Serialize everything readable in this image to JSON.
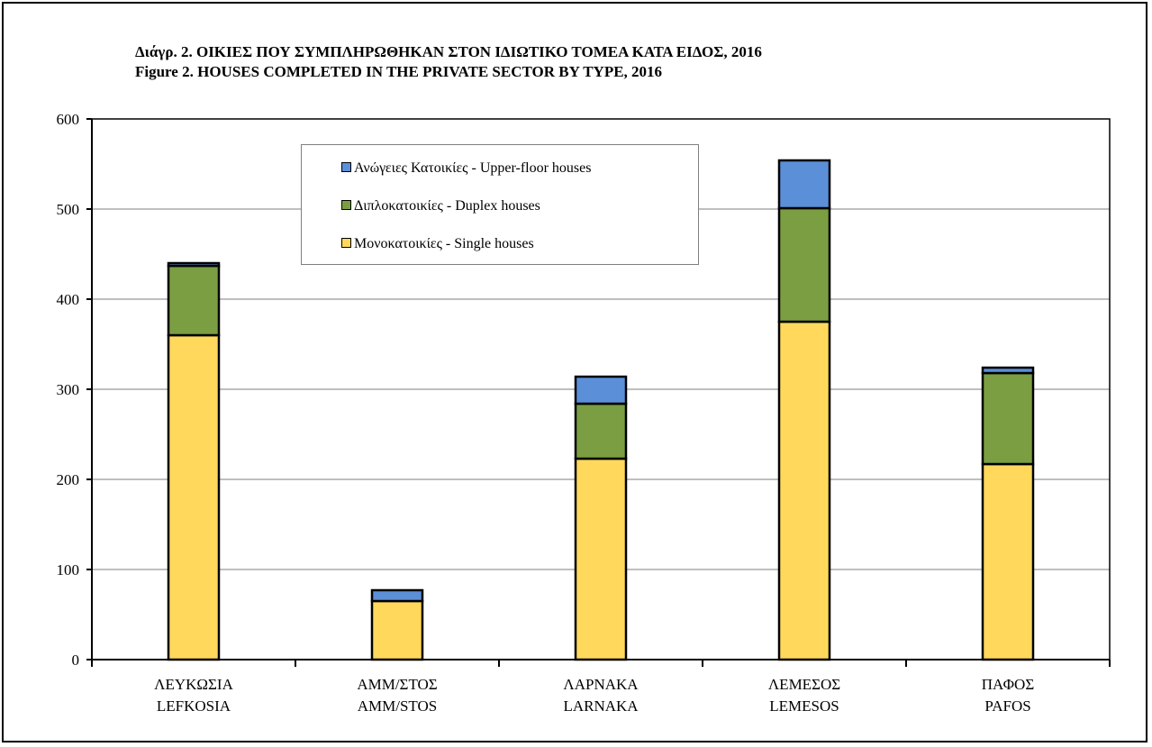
{
  "titles": {
    "line1": "Διάγρ.  2.  ΟΙΚΙΕΣ ΠΟΥ ΣΥΜΠΛΗΡΩΘΗΚΑΝ ΣΤΟΝ ΙΔΙΩΤΙΚΟ ΤΟΜΕΑ ΚΑΤΑ ΕΙΔΟΣ, 2016",
    "line2": "Figure  2.  HOUSES COMPLETED IN THE PRIVATE SECTOR  BY TYPE, 2016"
  },
  "colors": {
    "single": "#ffd85c",
    "duplex": "#7a9e41",
    "upper": "#5b8fd8"
  },
  "legend": {
    "upper": "Ανώγειες Κατοικίες - Upper-floor houses",
    "duplex": "Διπλοκατοικίες - Duplex houses",
    "single": "Μονοκατοικίες - Single houses"
  },
  "chart_data": {
    "type": "bar",
    "stacked": true,
    "categories": [
      [
        "ΛΕΥΚΩΣΙΑ",
        "LEFKOSIA"
      ],
      [
        "ΑΜΜ/ΣΤΟΣ",
        "AMM/STOS"
      ],
      [
        "ΛΑΡΝΑΚΑ",
        "LARNAKA"
      ],
      [
        "ΛΕΜΕΣΟΣ",
        "LEMESOS"
      ],
      [
        "ΠΑΦΟΣ",
        "PAFOS"
      ]
    ],
    "series": [
      {
        "name": "Μονοκατοικίες - Single houses",
        "key": "single",
        "values": [
          360,
          65,
          223,
          375,
          217
        ]
      },
      {
        "name": "Διπλοκατοικίες - Duplex houses",
        "key": "duplex",
        "values": [
          77,
          0,
          61,
          126,
          101
        ]
      },
      {
        "name": "Ανώγειες Κατοικίες - Upper-floor houses",
        "key": "upper",
        "values": [
          3,
          12,
          30,
          53,
          6
        ]
      }
    ],
    "ylim": [
      0,
      600
    ],
    "yticks": [
      0,
      100,
      200,
      300,
      400,
      500,
      600
    ],
    "grid": true,
    "legend_position": "top-center"
  }
}
